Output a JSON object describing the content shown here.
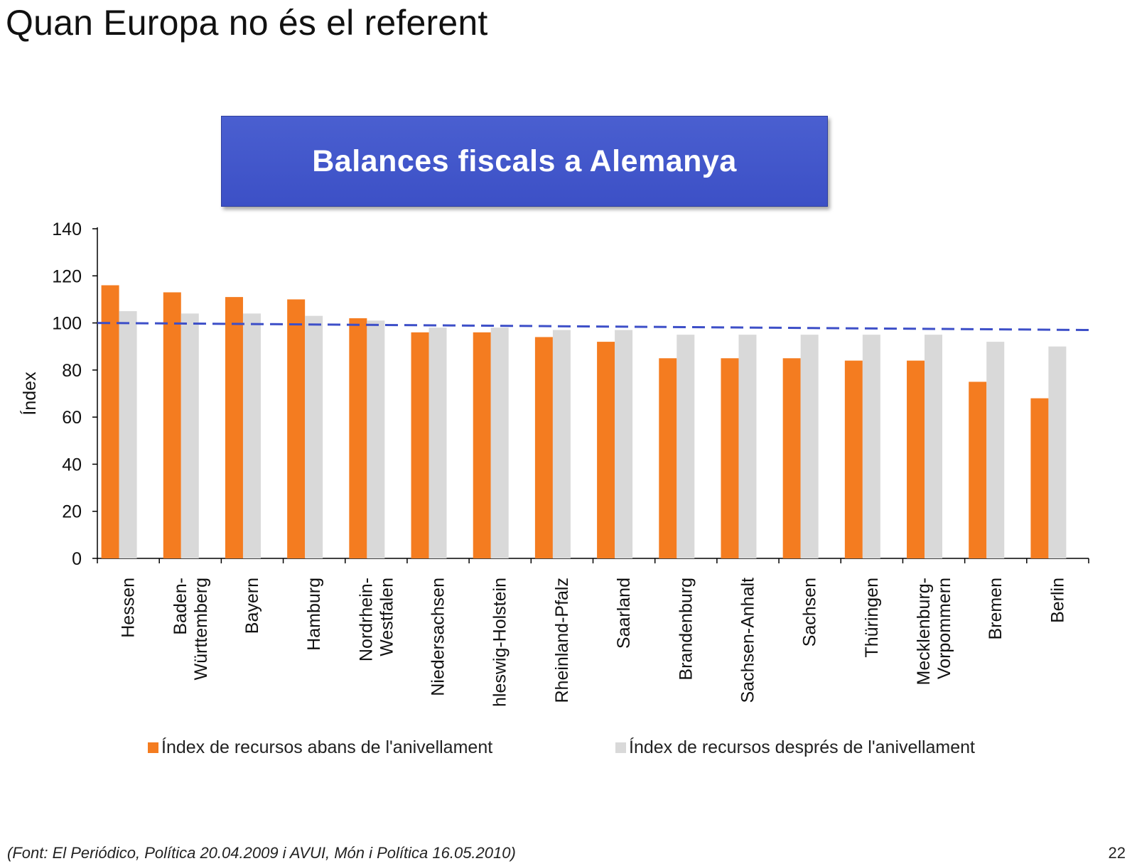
{
  "slide": {
    "title": "Quan Europa no és el referent",
    "source": "(Font: El Periódico, Política 20.04.2009 i AVUI, Món i Política 16.05.2010)",
    "page_number": "22"
  },
  "chart_data": {
    "type": "bar",
    "title": "Balances fiscals a Alemanya",
    "xlabel": "",
    "ylabel": "Índex",
    "ylim": [
      0,
      140
    ],
    "yticks": [
      0,
      20,
      40,
      60,
      80,
      100,
      120,
      140
    ],
    "grid": false,
    "legend_position": "bottom",
    "categories": [
      "Hessen",
      "Baden-\nWürttemberg",
      "Bayern",
      "Hamburg",
      "Nordrhein-\nWestfalen",
      "Niedersachsen",
      "hleswig-Holstein",
      "Rheinland-Pfalz",
      "Saarland",
      "Brandenburg",
      "Sachsen-Anhalt",
      "Sachsen",
      "Thüringen",
      "Mecklenburg-\nVorpommern",
      "Bremen",
      "Berlin"
    ],
    "series": [
      {
        "name": "Índex de recursos abans de l'anivellament",
        "color": "#f47c20",
        "values": [
          116,
          113,
          111,
          110,
          102,
          96,
          96,
          94,
          92,
          85,
          85,
          85,
          84,
          84,
          75,
          68
        ]
      },
      {
        "name": "Índex de recursos després de l'anivellament",
        "color": "#d9d9d9",
        "values": [
          105,
          104,
          104,
          103,
          101,
          98,
          98,
          97,
          97,
          95,
          95,
          95,
          95,
          95,
          92,
          90
        ]
      }
    ],
    "reference_line": {
      "style": "dashed",
      "color": "#3d4fc8",
      "start_value": 100,
      "end_value": 97
    }
  }
}
